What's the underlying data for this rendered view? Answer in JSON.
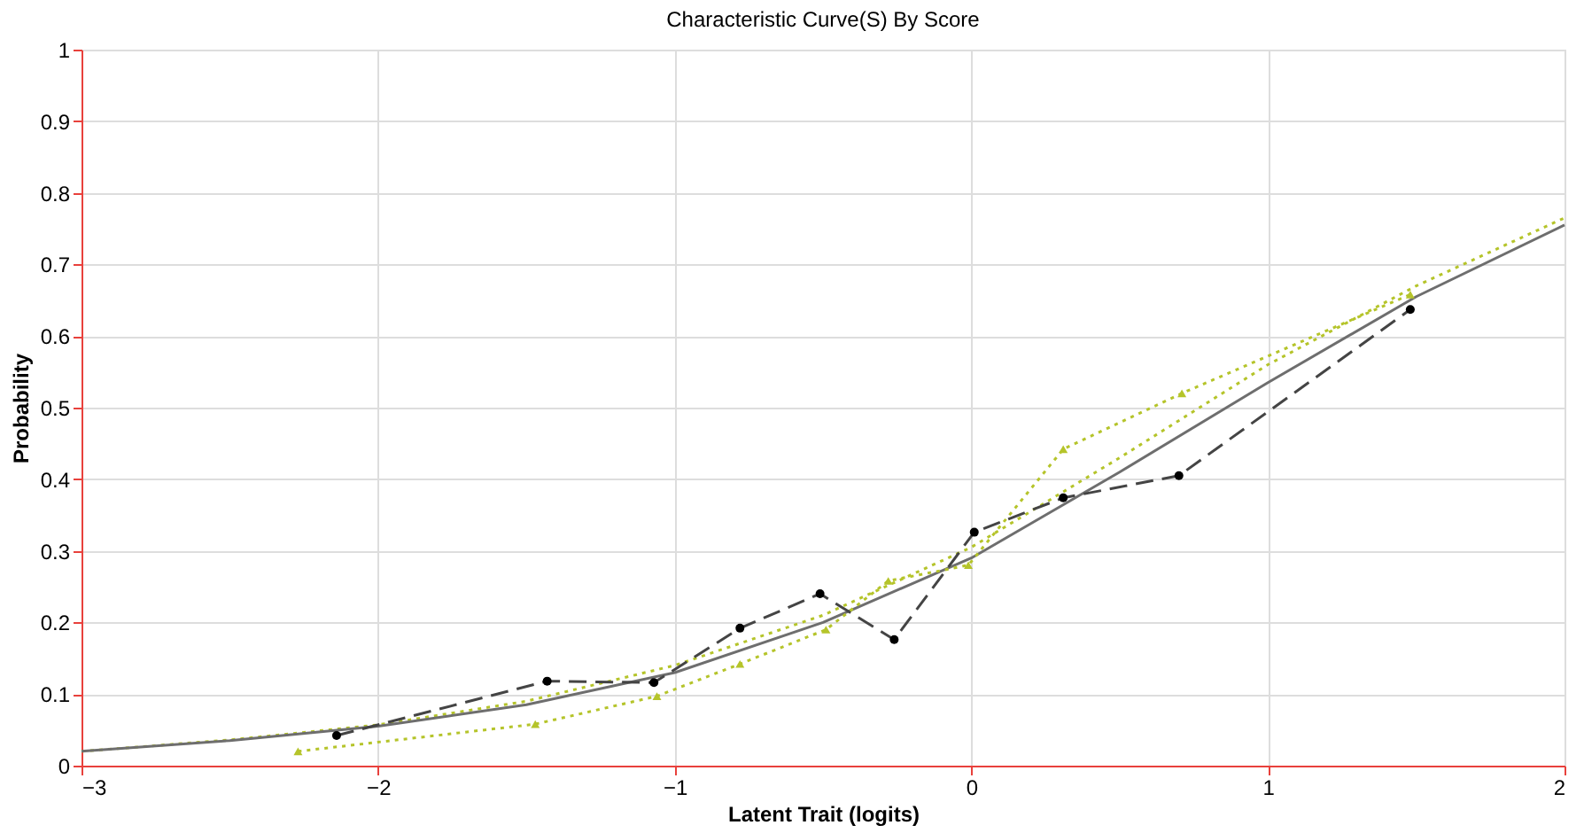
{
  "chart_data": {
    "type": "line",
    "title": "Characteristic Curve(S) By Score",
    "xlabel": "Latent Trait (logits)",
    "ylabel": "Probability",
    "xlim": [
      -3,
      2
    ],
    "xticks": [
      {
        "value": -3,
        "label": "−3"
      },
      {
        "value": -2,
        "label": "−2"
      },
      {
        "value": -1,
        "label": "−1"
      },
      0,
      1,
      2
    ],
    "ylim": [
      0,
      1
    ],
    "yticks": [
      0,
      0.1,
      0.2,
      0.3,
      0.4,
      0.5,
      0.6,
      0.7,
      0.8,
      0.9,
      1
    ],
    "grid": true,
    "legend": false,
    "series": [
      {
        "color": "#b5c42a",
        "line_style": "dotted",
        "marker": "none",
        "x": [
          -3,
          -2.5,
          -2,
          -1.5,
          -1,
          -0.5,
          0,
          0.5,
          1,
          1.5,
          2
        ],
        "values": [
          0.02,
          0.036,
          0.057,
          0.09,
          0.14,
          0.21,
          0.305,
          0.43,
          0.56,
          0.67,
          0.765
        ]
      },
      {
        "color": "#6e6e6e",
        "line_style": "solid",
        "marker": "none",
        "x": [
          -3,
          -2.5,
          -2,
          -1.5,
          -1,
          -0.5,
          0,
          0.5,
          1,
          1.5,
          2
        ],
        "values": [
          0.02,
          0.035,
          0.055,
          0.085,
          0.13,
          0.2,
          0.29,
          0.41,
          0.535,
          0.655,
          0.755
        ]
      },
      {
        "color": "#444444",
        "line_style": "dashed",
        "marker": "circle",
        "x": [
          -2.14,
          -1.43,
          -1.07,
          -0.78,
          -0.51,
          -0.26,
          0.01,
          0.31,
          0.7,
          1.48
        ],
        "values": [
          0.042,
          0.118,
          0.116,
          0.192,
          0.24,
          0.176,
          0.326,
          0.374,
          0.405,
          0.637
        ]
      },
      {
        "color": "#b5c42a",
        "line_style": "dotted",
        "marker": "triangle",
        "x": [
          -2.27,
          -1.47,
          -1.06,
          -0.78,
          -0.49,
          -0.28,
          -0.01,
          0.31,
          0.71,
          1.48
        ],
        "values": [
          0.02,
          0.058,
          0.097,
          0.142,
          0.19,
          0.258,
          0.28,
          0.442,
          0.52,
          0.658
        ]
      }
    ]
  }
}
